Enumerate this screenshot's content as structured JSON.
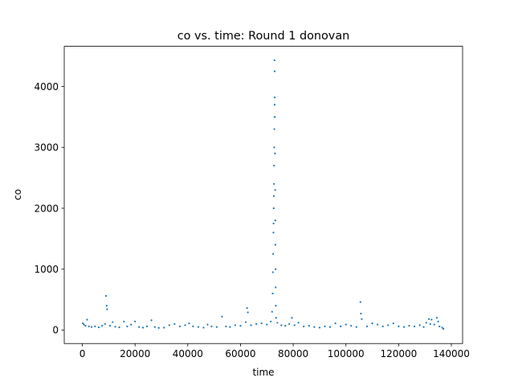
{
  "chart_data": {
    "type": "scatter",
    "title": "co vs. time: Round 1 donovan",
    "xlabel": "time",
    "ylabel": "co",
    "xlim": [
      -6870,
      144270
    ],
    "ylim": [
      -222,
      4660
    ],
    "xticks": [
      0,
      20000,
      40000,
      60000,
      80000,
      100000,
      120000,
      140000
    ],
    "yticks": [
      0,
      1000,
      2000,
      3000,
      4000
    ],
    "grid": false,
    "legend": "none",
    "color": "#1f77b4",
    "series": [
      {
        "points": [
          [
            200,
            110
          ],
          [
            600,
            90
          ],
          [
            1200,
            70
          ],
          [
            1800,
            170
          ],
          [
            2500,
            60
          ],
          [
            3500,
            50
          ],
          [
            4800,
            60
          ],
          [
            6200,
            45
          ],
          [
            7500,
            70
          ],
          [
            8600,
            100
          ],
          [
            9000,
            560
          ],
          [
            9200,
            400
          ],
          [
            9400,
            340
          ],
          [
            10500,
            70
          ],
          [
            11500,
            130
          ],
          [
            12500,
            55
          ],
          [
            14000,
            45
          ],
          [
            15800,
            140
          ],
          [
            17000,
            60
          ],
          [
            18500,
            90
          ],
          [
            20000,
            140
          ],
          [
            21500,
            50
          ],
          [
            23000,
            40
          ],
          [
            24500,
            60
          ],
          [
            26200,
            160
          ],
          [
            27500,
            50
          ],
          [
            29000,
            35
          ],
          [
            31000,
            40
          ],
          [
            33000,
            80
          ],
          [
            35000,
            100
          ],
          [
            37000,
            60
          ],
          [
            39000,
            80
          ],
          [
            40500,
            110
          ],
          [
            42000,
            60
          ],
          [
            44000,
            50
          ],
          [
            46000,
            40
          ],
          [
            47500,
            90
          ],
          [
            49000,
            60
          ],
          [
            51000,
            50
          ],
          [
            53000,
            220
          ],
          [
            54500,
            60
          ],
          [
            56000,
            50
          ],
          [
            58000,
            80
          ],
          [
            60000,
            70
          ],
          [
            62000,
            130
          ],
          [
            62500,
            360
          ],
          [
            62800,
            290
          ],
          [
            64000,
            80
          ],
          [
            66000,
            100
          ],
          [
            68000,
            110
          ],
          [
            70000,
            90
          ],
          [
            71500,
            140
          ],
          [
            72000,
            300
          ],
          [
            72200,
            600
          ],
          [
            72300,
            950
          ],
          [
            72400,
            1250
          ],
          [
            72500,
            1600
          ],
          [
            72550,
            1750
          ],
          [
            72600,
            2000
          ],
          [
            72650,
            2200
          ],
          [
            72700,
            2400
          ],
          [
            72750,
            2700
          ],
          [
            72800,
            3000
          ],
          [
            72850,
            3300
          ],
          [
            72900,
            3500
          ],
          [
            72950,
            3700
          ],
          [
            73000,
            3820
          ],
          [
            72950,
            4250
          ],
          [
            72900,
            4430
          ],
          [
            73050,
            3500
          ],
          [
            73100,
            2900
          ],
          [
            73150,
            2300
          ],
          [
            73200,
            1800
          ],
          [
            73250,
            1400
          ],
          [
            73300,
            1000
          ],
          [
            73350,
            700
          ],
          [
            73400,
            400
          ],
          [
            73500,
            200
          ],
          [
            74000,
            120
          ],
          [
            75500,
            80
          ],
          [
            77000,
            70
          ],
          [
            78500,
            100
          ],
          [
            79500,
            200
          ],
          [
            80500,
            80
          ],
          [
            82000,
            120
          ],
          [
            84000,
            60
          ],
          [
            86000,
            70
          ],
          [
            88000,
            50
          ],
          [
            90000,
            40
          ],
          [
            92000,
            60
          ],
          [
            94000,
            50
          ],
          [
            96000,
            110
          ],
          [
            98000,
            60
          ],
          [
            100000,
            90
          ],
          [
            102000,
            70
          ],
          [
            104000,
            50
          ],
          [
            105500,
            460
          ],
          [
            105700,
            270
          ],
          [
            106000,
            180
          ],
          [
            108000,
            60
          ],
          [
            110000,
            110
          ],
          [
            112000,
            90
          ],
          [
            114000,
            60
          ],
          [
            116000,
            80
          ],
          [
            118000,
            110
          ],
          [
            120000,
            60
          ],
          [
            122000,
            50
          ],
          [
            124000,
            70
          ],
          [
            126000,
            60
          ],
          [
            128000,
            80
          ],
          [
            129500,
            50
          ],
          [
            130500,
            120
          ],
          [
            131500,
            180
          ],
          [
            132000,
            100
          ],
          [
            132500,
            170
          ],
          [
            133500,
            90
          ],
          [
            134500,
            200
          ],
          [
            135000,
            140
          ],
          [
            135500,
            60
          ],
          [
            136500,
            40
          ],
          [
            137000,
            20
          ]
        ]
      }
    ]
  }
}
